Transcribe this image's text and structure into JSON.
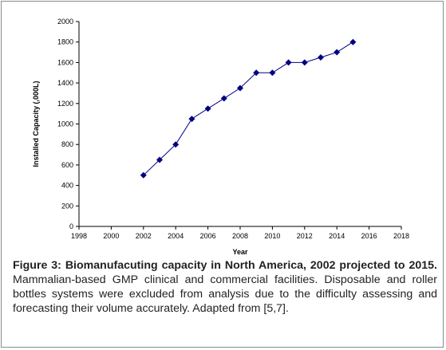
{
  "chart_data": {
    "type": "line",
    "xlabel": "Year",
    "ylabel": "Installed Capacity (,000L)",
    "xlim": [
      1998,
      2018
    ],
    "ylim": [
      0,
      2000
    ],
    "x_ticks": [
      1998,
      2000,
      2002,
      2004,
      2006,
      2008,
      2010,
      2012,
      2014,
      2016,
      2018
    ],
    "y_ticks": [
      0,
      200,
      400,
      600,
      800,
      1000,
      1200,
      1400,
      1600,
      1800,
      2000
    ],
    "grid": false,
    "legend": "none",
    "series": [
      {
        "x": [
          2002,
          2003,
          2004,
          2005,
          2006,
          2007,
          2008,
          2009,
          2010,
          2011,
          2012,
          2013,
          2014,
          2015
        ],
        "values": [
          500,
          650,
          800,
          1050,
          1150,
          1250,
          1350,
          1500,
          1500,
          1600,
          1600,
          1650,
          1700,
          1800
        ],
        "color": "#000080",
        "marker": "diamond"
      }
    ]
  },
  "caption": {
    "bold": "Figure 3: Biomanufacuting capacity in North America, 2002 projected to 2015.",
    "text": " Mammalian-based GMP clinical and commercial facilities. Disposable and roller bottles systems were excluded from analysis due to the difficulty assessing and forecasting their volume accurately. Adapted from [5,7]."
  }
}
